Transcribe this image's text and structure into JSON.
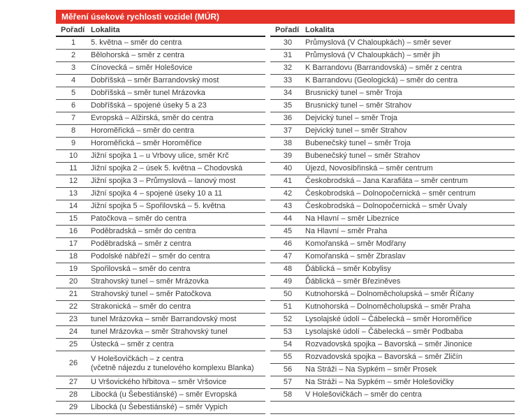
{
  "table": {
    "title": "Měření úsekové rychlosti vozidel (MÚR)",
    "columns": {
      "order": "Pořadí",
      "locality": "Lokalita"
    },
    "left_rows": [
      {
        "order": "1",
        "locality": "5. května – směr do centra"
      },
      {
        "order": "2",
        "locality": "Bělohorská – směr z centra"
      },
      {
        "order": "3",
        "locality": "Cínovecká – směr Holešovice"
      },
      {
        "order": "4",
        "locality": "Dobříšská – směr Barrandovský most"
      },
      {
        "order": "5",
        "locality": "Dobříšská – směr tunel Mrázovka"
      },
      {
        "order": "6",
        "locality": "Dobříšská – spojené úseky 5 a 23"
      },
      {
        "order": "7",
        "locality": "Evropská – Alžirská, směr do centra"
      },
      {
        "order": "8",
        "locality": "Horoměřická – směr do centra"
      },
      {
        "order": "9",
        "locality": "Horoměřická – směr Horoměřice"
      },
      {
        "order": "10",
        "locality": "Jižní spojka 1 – u Vrbovy ulice, směr Krč"
      },
      {
        "order": "11",
        "locality": "Jižní spojka 2 – úsek 5. května – Chodovská"
      },
      {
        "order": "12",
        "locality": "Jižní spojka 3 – Průmyslová – lanový most"
      },
      {
        "order": "13",
        "locality": "Jižní spojka 4 – spojené úseky 10 a 11"
      },
      {
        "order": "14",
        "locality": "Jižní spojka 5 – Spořilovská – 5. května"
      },
      {
        "order": "15",
        "locality": "Patočkova – směr do centra"
      },
      {
        "order": "16",
        "locality": "Poděbradská – směr do centra"
      },
      {
        "order": "17",
        "locality": "Poděbradská – směr z centra"
      },
      {
        "order": "18",
        "locality": "Podolské nábřeží – směr do centra"
      },
      {
        "order": "19",
        "locality": "Spořilovská – směr do centra"
      },
      {
        "order": "20",
        "locality": "Strahovský tunel – směr Mrázovka"
      },
      {
        "order": "21",
        "locality": "Strahovský tunel – směr Patočkova"
      },
      {
        "order": "22",
        "locality": "Strakonická – směr do centra"
      },
      {
        "order": "23",
        "locality": "tunel Mrázovka – směr Barrandovský most"
      },
      {
        "order": "24",
        "locality": "tunel Mrázovka – směr Strahovský tunel"
      },
      {
        "order": "25",
        "locality": "Ústecká – směr z centra"
      },
      {
        "order": "26",
        "locality": "V Holešovičkách – z centra\n(včetně nájezdu z tunelového komplexu Blanka)"
      },
      {
        "order": "27",
        "locality": "U Vršovického hřbitova – směr Vršovice"
      },
      {
        "order": "28",
        "locality": "Libocká (u Šebestiánské) – směr Evropská"
      },
      {
        "order": "29",
        "locality": "Libocká (u Šebestiánské) – směr Vypich"
      }
    ],
    "right_rows": [
      {
        "order": "30",
        "locality": "Průmyslová (V Chaloupkách) – směr sever"
      },
      {
        "order": "31",
        "locality": "Průmyslová (V Chaloupkách) – směr jih"
      },
      {
        "order": "32",
        "locality": "K Barrandovu (Barrandovská) – směr z centra"
      },
      {
        "order": "33",
        "locality": "K Barrandovu (Geologická) – směr do centra"
      },
      {
        "order": "34",
        "locality": "Brusnický tunel – směr Troja"
      },
      {
        "order": "35",
        "locality": "Brusnický tunel – směr Strahov"
      },
      {
        "order": "36",
        "locality": "Dejvický tunel – směr Troja"
      },
      {
        "order": "37",
        "locality": "Dejvický tunel – směr Strahov"
      },
      {
        "order": "38",
        "locality": "Bubenečský tunel – směr Troja"
      },
      {
        "order": "39",
        "locality": "Bubenečský tunel – směr Strahov"
      },
      {
        "order": "40",
        "locality": "Újezd, Novosibřinská – směr centrum"
      },
      {
        "order": "41",
        "locality": "Českobrodská – Jana Karafiáta – směr centrum"
      },
      {
        "order": "42",
        "locality": "Českobrodská – Dolnopočernická – směr centrum"
      },
      {
        "order": "43",
        "locality": "Českobrodská – Dolnopočernická – směr Úvaly"
      },
      {
        "order": "44",
        "locality": "Na Hlavní – směr Libeznice"
      },
      {
        "order": "45",
        "locality": "Na Hlavní – směr Praha"
      },
      {
        "order": "46",
        "locality": "Komořanská – směr Modřany"
      },
      {
        "order": "47",
        "locality": "Komořanská – směr Zbraslav"
      },
      {
        "order": "48",
        "locality": "Ďáblická – směr Kobylisy"
      },
      {
        "order": "49",
        "locality": "Ďáblická – směr Březiněves"
      },
      {
        "order": "50",
        "locality": "Kutnohorská – Dolnoměcholupská – směr Říčany"
      },
      {
        "order": "51",
        "locality": "Kutnohorská – Dolnoměcholupská – směr Praha"
      },
      {
        "order": "52",
        "locality": "Lysolajské údolí – Čábelecká – směr Horoměřice"
      },
      {
        "order": "53",
        "locality": "Lysolajské údolí – Čábelecká – směr Podbaba"
      },
      {
        "order": "54",
        "locality": "Rozvadovská spojka – Bavorská – směr Jinonice"
      },
      {
        "order": "55",
        "locality": "Rozvadovská spojka – Bavorská – směr Zličín"
      },
      {
        "order": "56",
        "locality": "Na Stráži – Na Sypkém – směr Prosek"
      },
      {
        "order": "57",
        "locality": "Na Stráži – Na Sypkém – směr Holešovičky"
      },
      {
        "order": "58",
        "locality": "V Holešovičkách – směr do centra"
      }
    ]
  },
  "colors": {
    "title_bar_bg": "#e6332a",
    "title_bar_text": "#ffffff",
    "row_line": "#4d4d4d",
    "body_text": "#3a3a3a"
  }
}
